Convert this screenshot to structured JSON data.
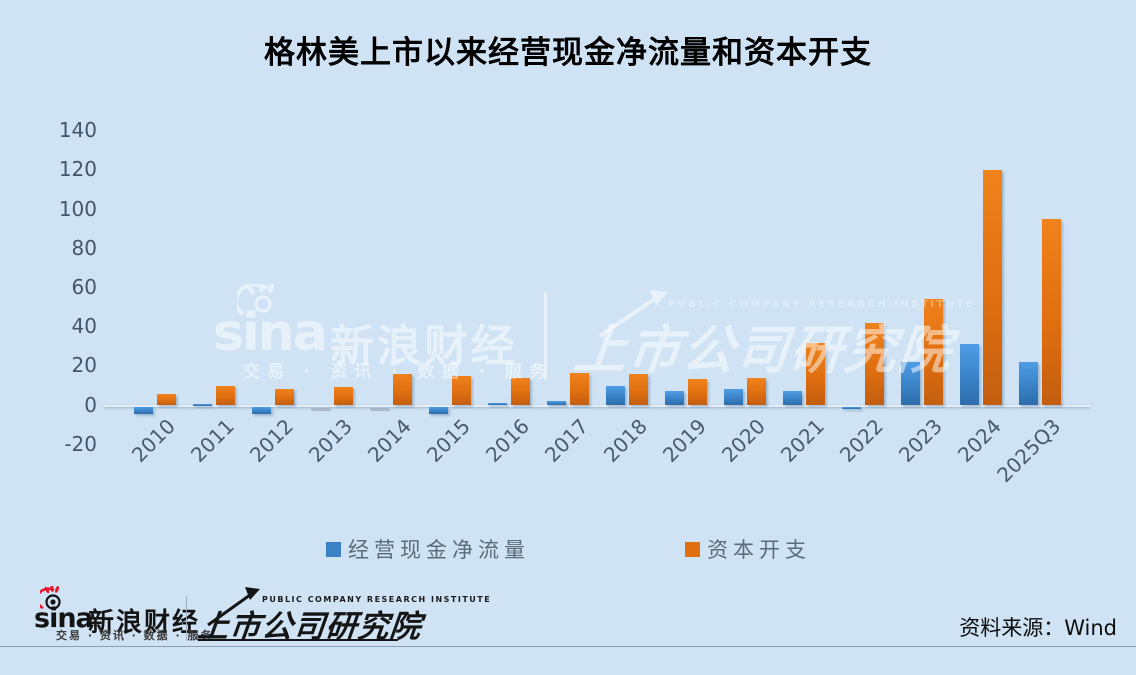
{
  "title": "格林美上市以来经营现金净流量和资本开支",
  "chart_data": {
    "type": "bar",
    "title": "格林美上市以来经营现金净流量和资本开支",
    "categories": [
      "2010",
      "2011",
      "2012",
      "2013",
      "2014",
      "2015",
      "2016",
      "2017",
      "2018",
      "2019",
      "2020",
      "2021",
      "2022",
      "2023",
      "2024",
      "2025Q3"
    ],
    "series": [
      {
        "name": "经营现金净流量",
        "color": "#3a82c6",
        "values": [
          -3.9,
          1.0,
          -3.6,
          -0.2,
          0.1,
          -3.9,
          1.2,
          2.2,
          10.2,
          7.2,
          8.3,
          7.2,
          -0.5,
          22.1,
          31.3,
          22.4
        ]
      },
      {
        "name": "资本开支",
        "color": "#e06f10",
        "values": [
          6.0,
          10.2,
          8.2,
          9.4,
          16.2,
          15.3,
          14.1,
          16.8,
          16.2,
          13.3,
          14.1,
          31.8,
          42.0,
          54.6,
          120.3,
          95.4
        ]
      }
    ],
    "ylim": [
      -20,
      140
    ],
    "ytick_step": 20,
    "grid": false,
    "legend_position": "bottom",
    "xlabel": "",
    "ylabel": ""
  },
  "watermark": {
    "sina_word": "sina",
    "sina_brand": "新浪财经",
    "sina_tagline": "交易 · 资讯 · 数据 · 服务",
    "institute_en": "PUBLIC COMPANY RESEARCH INSTITUTE",
    "institute": "上市公司研究院"
  },
  "footer": {
    "sina_word": "sina",
    "sina_brand": "新浪财经",
    "sina_tagline": "交易 · 资讯 · 数据 · 服务",
    "institute_en": "PUBLIC COMPANY RESEARCH INSTITUTE",
    "institute": "上市公司研究院",
    "source": "资料来源：Wind"
  },
  "colors": {
    "background": "#cfe3f4",
    "bar_blue_top": "#4f9de6",
    "bar_blue_bottom": "#2e6dab",
    "bar_orange_top": "#f0821c",
    "bar_orange_bottom": "#c35e10",
    "near_zero_bar": "#aab7c3",
    "axis_text": "#44546a",
    "legend_text": "#5b6b7a"
  }
}
